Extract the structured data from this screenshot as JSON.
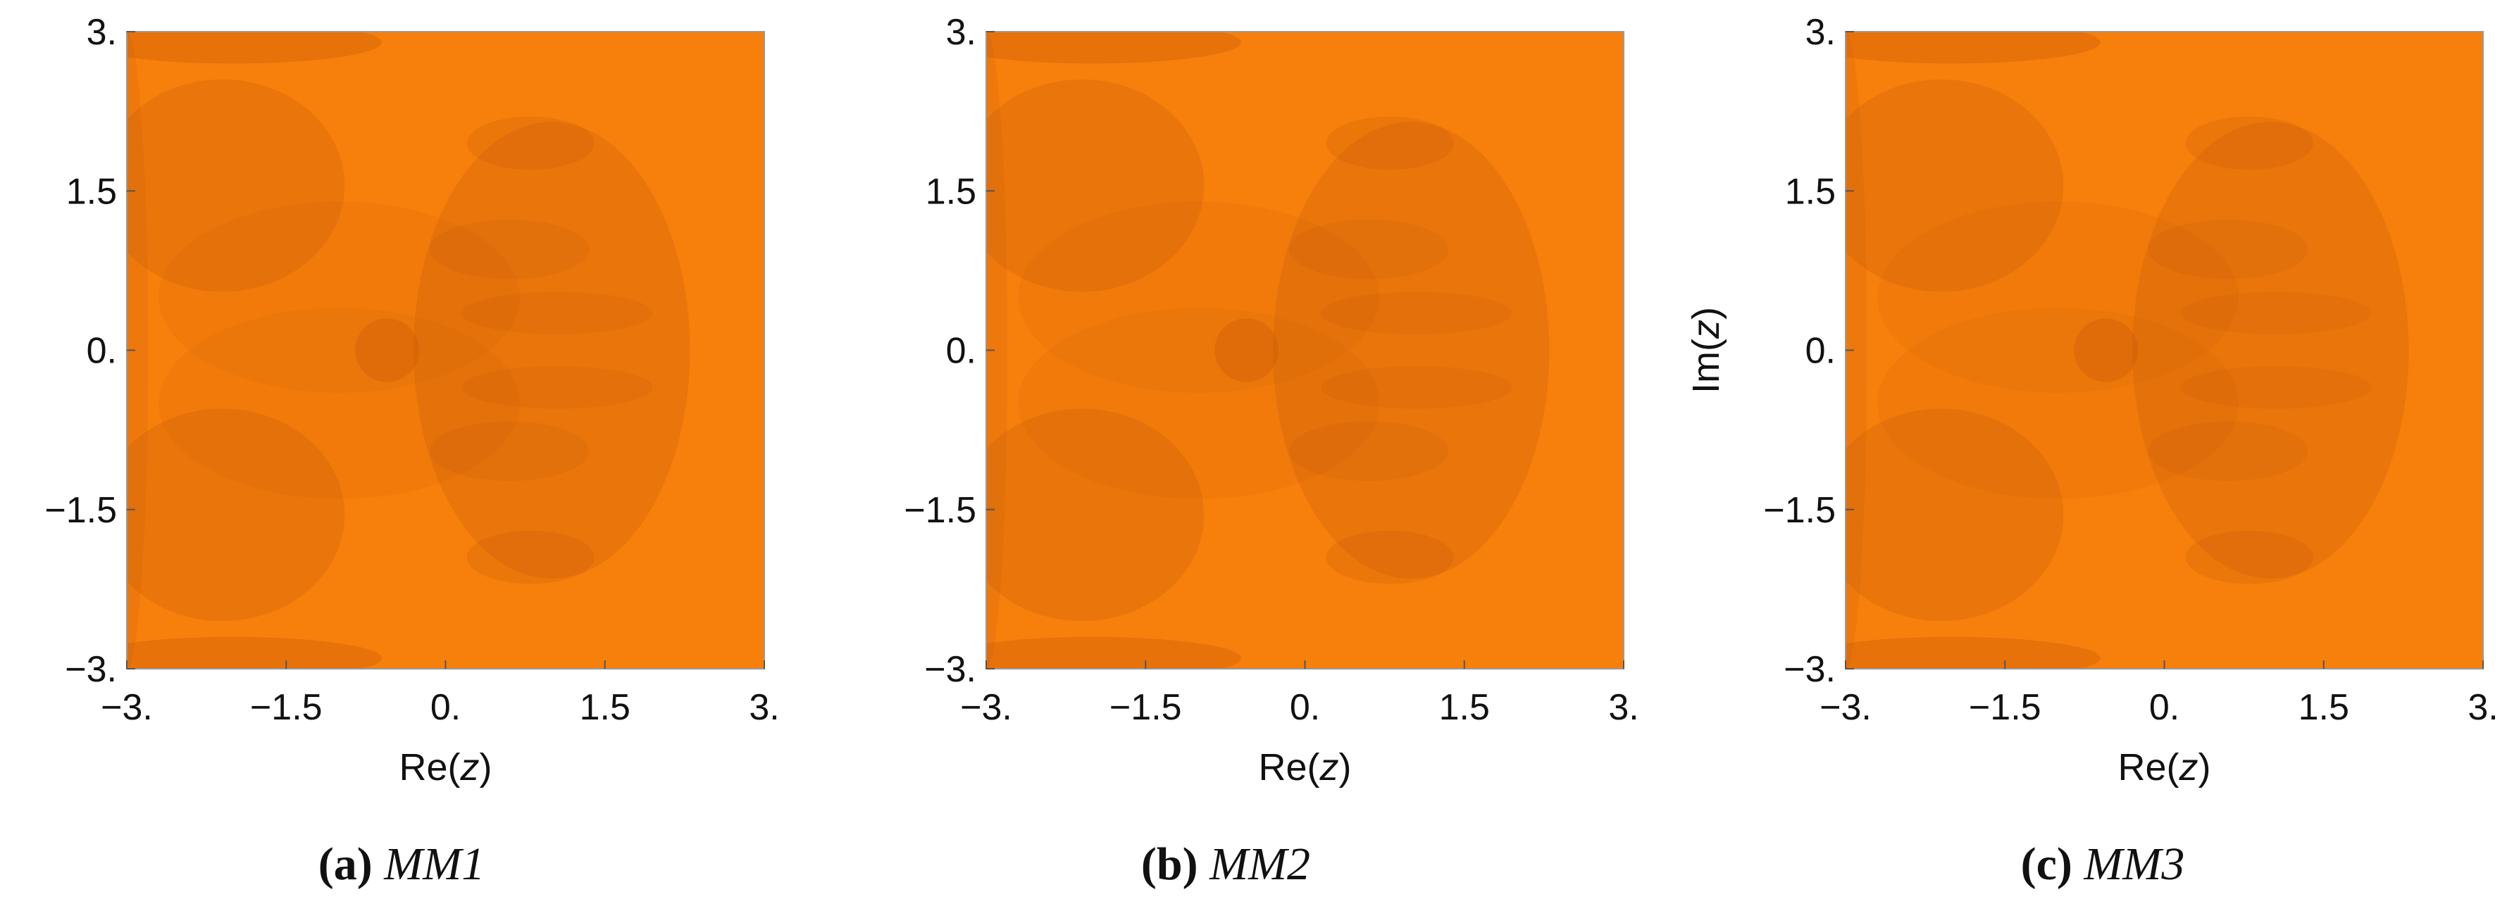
{
  "chart_data": [
    {
      "type": "heatmap",
      "xlabel": "Re(z)",
      "ylabel": "",
      "xlim": [
        -3,
        3
      ],
      "ylim": [
        -3,
        3
      ],
      "xticks": [
        "-3.",
        "-1.5",
        "0.",
        "1.5",
        "3."
      ],
      "yticks": [
        "3.",
        "1.5",
        "0.",
        "-1.5",
        "-3."
      ],
      "caption_label": "(a)",
      "caption_name": "MM1",
      "base_color": "#f77f0b",
      "shade_color": "#c2570a"
    },
    {
      "type": "heatmap",
      "xlabel": "Re(z)",
      "ylabel": "",
      "xlim": [
        -3,
        3
      ],
      "ylim": [
        -3,
        3
      ],
      "xticks": [
        "-3.",
        "-1.5",
        "0.",
        "1.5",
        "3."
      ],
      "yticks": [
        "3.",
        "1.5",
        "0.",
        "-1.5",
        "-3."
      ],
      "caption_label": "(b)",
      "caption_name": "MM2",
      "base_color": "#f77f0b",
      "shade_color": "#c2570a"
    },
    {
      "type": "heatmap",
      "xlabel": "Re(z)",
      "ylabel": "Im(z)",
      "xlim": [
        -3,
        3
      ],
      "ylim": [
        -3,
        3
      ],
      "xticks": [
        "-3.",
        "-1.5",
        "0.",
        "1.5",
        "3."
      ],
      "yticks": [
        "3.",
        "1.5",
        "0.",
        "-1.5",
        "-3."
      ],
      "caption_label": "(c)",
      "caption_name": "MM3",
      "base_color": "#f77f0b",
      "shade_color": "#c2570a"
    }
  ]
}
